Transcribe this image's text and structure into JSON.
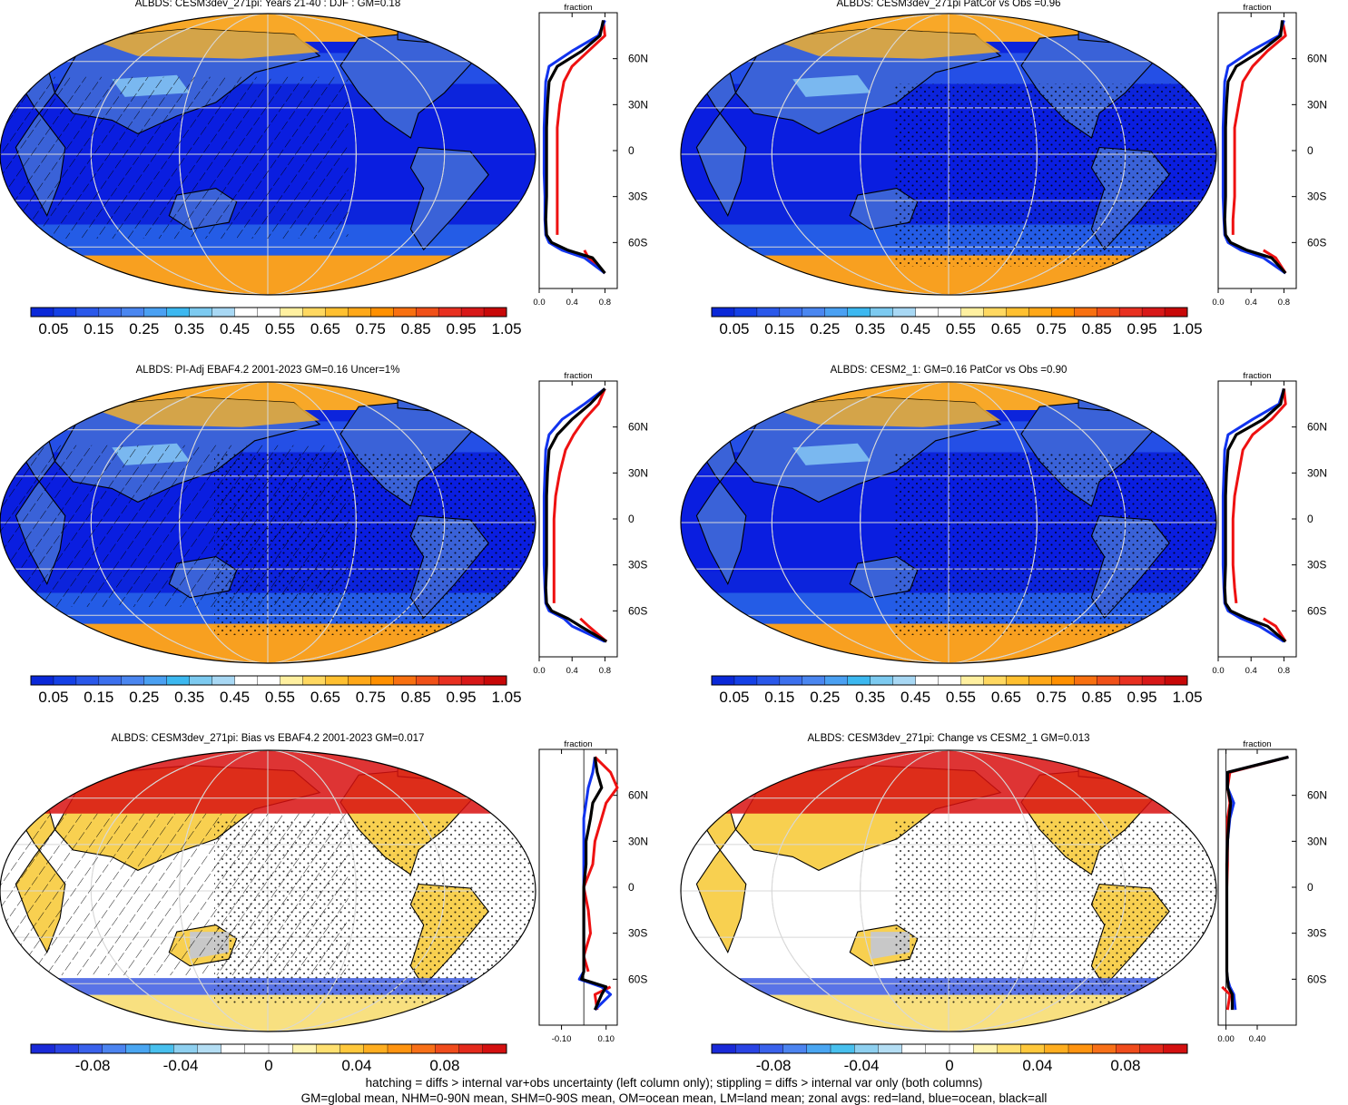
{
  "colors": {
    "seq": [
      "#0a28d8",
      "#1440e6",
      "#2a58ea",
      "#3c70ee",
      "#4a86f0",
      "#4aa0f2",
      "#3cb8f0",
      "#7ccaf0",
      "#a8d8f4",
      "#ffffff",
      "#ffffff",
      "#fff0a0",
      "#ffd860",
      "#ffc030",
      "#ffa818",
      "#ff9000",
      "#f87010",
      "#f05018",
      "#e83020",
      "#d81818",
      "#c80808"
    ],
    "div": [
      "#1a2ad8",
      "#2a44e4",
      "#3a62ec",
      "#4c84f0",
      "#4aa6f2",
      "#48c0ee",
      "#8ed0f0",
      "#b4def4",
      "#ffffff",
      "#ffffff",
      "#ffffff",
      "#fff4b0",
      "#ffe070",
      "#ffc83c",
      "#ffae20",
      "#ff9410",
      "#f87018",
      "#f04c1c",
      "#e42a1c",
      "#d41010"
    ],
    "land": "#9aa8d8",
    "zonal_land": "#ee1111",
    "zonal_ocean": "#1133ee",
    "zonal_all": "#000000"
  },
  "panels": [
    {
      "title": "ALBDS: CESM3dev_271pi: Years 21-40 : DJF : GM=0.18",
      "kind": "seq",
      "hatch": true,
      "stipple": false,
      "colorbar_labels": [
        "0.05",
        "0.15",
        "0.25",
        "0.35",
        "0.45",
        "0.55",
        "0.65",
        "0.75",
        "0.85",
        "0.95",
        "1.05"
      ],
      "zonal_label": "fraction",
      "zonal_ticks": [
        "0.0",
        "0.4",
        "0.8"
      ]
    },
    {
      "title": "ALBDS: CESM3dev_271pi PatCor vs Obs =0.96",
      "kind": "seq",
      "hatch": false,
      "stipple": true,
      "colorbar_labels": [
        "0.05",
        "0.15",
        "0.25",
        "0.35",
        "0.45",
        "0.55",
        "0.65",
        "0.75",
        "0.85",
        "0.95",
        "1.05"
      ],
      "zonal_label": "fraction",
      "zonal_ticks": [
        "0.0",
        "0.4",
        "0.8"
      ]
    },
    {
      "title": "ALBDS: PI-Adj EBAF4.2 2001-2023 GM=0.16 Uncer=1%",
      "kind": "seq",
      "hatch": true,
      "stipple": true,
      "colorbar_labels": [
        "0.05",
        "0.15",
        "0.25",
        "0.35",
        "0.45",
        "0.55",
        "0.65",
        "0.75",
        "0.85",
        "0.95",
        "1.05"
      ],
      "zonal_label": "fraction",
      "zonal_ticks": [
        "0.0",
        "0.4",
        "0.8"
      ]
    },
    {
      "title": "ALBDS: CESM2_1: GM=0.16 PatCor vs Obs =0.90",
      "kind": "seq",
      "hatch": false,
      "stipple": true,
      "colorbar_labels": [
        "0.05",
        "0.15",
        "0.25",
        "0.35",
        "0.45",
        "0.55",
        "0.65",
        "0.75",
        "0.85",
        "0.95",
        "1.05"
      ],
      "zonal_label": "fraction",
      "zonal_ticks": [
        "0.0",
        "0.4",
        "0.8"
      ]
    },
    {
      "title": "ALBDS: CESM3dev_271pi: Bias vs EBAF4.2 2001-2023 GM=0.017",
      "kind": "div",
      "hatch": true,
      "stipple": true,
      "colorbar_labels": [
        "-0.08",
        "-0.04",
        "0",
        "0.04",
        "0.08"
      ],
      "zonal_label": "fraction",
      "zonal_ticks": [
        "-0.10",
        "0.10"
      ]
    },
    {
      "title": "ALBDS: CESM3dev_271pi: Change vs CESM2_1 GM=0.013",
      "kind": "div",
      "hatch": false,
      "stipple": true,
      "colorbar_labels": [
        "-0.08",
        "-0.04",
        "0",
        "0.04",
        "0.08"
      ],
      "zonal_label": "fraction",
      "zonal_ticks": [
        "0.00",
        "0.40"
      ]
    }
  ],
  "lat_ticks": [
    "60N",
    "30N",
    "0",
    "30S",
    "60S"
  ],
  "chart_data": [
    {
      "type": "heatmap",
      "title": "ALBDS: CESM3dev_271pi: Years 21-40 : DJF : GM=0.18",
      "colorbar": {
        "ticks": [
          0.05,
          0.15,
          0.25,
          0.35,
          0.45,
          0.55,
          0.65,
          0.75,
          0.85,
          0.95,
          1.05
        ]
      },
      "zonal_mean": {
        "xlabel": "fraction",
        "xticks": [
          0.0,
          0.4,
          0.8
        ],
        "ylim": [
          -90,
          90
        ],
        "lat": [
          85,
          75,
          65,
          55,
          45,
          30,
          15,
          0,
          -15,
          -30,
          -45,
          -55,
          -60,
          -65,
          -70,
          -80
        ],
        "land": [
          0.78,
          0.8,
          0.6,
          0.4,
          0.3,
          0.25,
          0.22,
          0.22,
          0.22,
          0.22,
          0.22,
          0.22,
          null,
          0.55,
          0.6,
          0.8
        ],
        "ocean": [
          0.8,
          0.72,
          0.4,
          0.12,
          0.08,
          0.07,
          0.06,
          0.06,
          0.06,
          0.07,
          0.07,
          0.08,
          0.12,
          0.28,
          0.55,
          0.8
        ],
        "all": [
          0.78,
          0.74,
          0.52,
          0.22,
          0.12,
          0.1,
          0.09,
          0.09,
          0.09,
          0.09,
          0.08,
          0.09,
          0.15,
          0.35,
          0.65,
          0.8
        ]
      }
    },
    {
      "type": "heatmap",
      "title": "ALBDS: CESM3dev_271pi PatCor vs Obs =0.96",
      "colorbar": {
        "ticks": [
          0.05,
          0.15,
          0.25,
          0.35,
          0.45,
          0.55,
          0.65,
          0.75,
          0.85,
          0.95,
          1.05
        ]
      },
      "zonal_mean": {
        "xlabel": "fraction",
        "xticks": [
          0.0,
          0.4,
          0.8
        ],
        "ylim": [
          -90,
          90
        ],
        "lat": [
          85,
          75,
          65,
          55,
          45,
          30,
          15,
          0,
          -15,
          -30,
          -45,
          -55,
          -60,
          -65,
          -70,
          -80
        ],
        "land": [
          0.78,
          0.82,
          0.6,
          0.42,
          0.3,
          0.25,
          0.2,
          0.2,
          0.2,
          0.2,
          0.18,
          0.18,
          null,
          0.55,
          0.7,
          0.82
        ],
        "ocean": [
          0.8,
          0.74,
          0.4,
          0.12,
          0.08,
          0.07,
          0.06,
          0.06,
          0.06,
          0.06,
          0.07,
          0.08,
          0.12,
          0.28,
          0.55,
          0.82
        ],
        "all": [
          0.78,
          0.76,
          0.52,
          0.22,
          0.12,
          0.1,
          0.09,
          0.09,
          0.09,
          0.09,
          0.08,
          0.09,
          0.15,
          0.35,
          0.65,
          0.82
        ]
      }
    },
    {
      "type": "heatmap",
      "title": "ALBDS: PI-Adj EBAF4.2 2001-2023 GM=0.16 Uncer=1%",
      "colorbar": {
        "ticks": [
          0.05,
          0.15,
          0.25,
          0.35,
          0.45,
          0.55,
          0.65,
          0.75,
          0.85,
          0.95,
          1.05
        ]
      },
      "zonal_mean": {
        "xlabel": "fraction",
        "xticks": [
          0.0,
          0.4,
          0.8
        ],
        "ylim": [
          -90,
          90
        ],
        "lat": [
          85,
          75,
          65,
          55,
          45,
          30,
          15,
          0,
          -15,
          -30,
          -45,
          -55,
          -60,
          -65,
          -70,
          -80
        ],
        "land": [
          0.8,
          0.72,
          0.55,
          0.42,
          0.32,
          0.25,
          0.2,
          0.18,
          0.18,
          0.18,
          0.18,
          0.18,
          null,
          0.5,
          0.6,
          0.82
        ],
        "ocean": [
          0.8,
          0.55,
          0.28,
          0.12,
          0.08,
          0.07,
          0.06,
          0.06,
          0.06,
          0.06,
          0.07,
          0.08,
          0.12,
          0.3,
          0.4,
          0.8
        ],
        "all": [
          0.8,
          0.62,
          0.4,
          0.22,
          0.12,
          0.1,
          0.09,
          0.09,
          0.09,
          0.09,
          0.08,
          0.09,
          0.15,
          0.35,
          0.5,
          0.82
        ]
      }
    },
    {
      "type": "heatmap",
      "title": "ALBDS: CESM2_1: GM=0.16 PatCor vs Obs =0.90",
      "colorbar": {
        "ticks": [
          0.05,
          0.15,
          0.25,
          0.35,
          0.45,
          0.55,
          0.65,
          0.75,
          0.85,
          0.95,
          1.05
        ]
      },
      "zonal_mean": {
        "xlabel": "fraction",
        "xticks": [
          0.0,
          0.4,
          0.8
        ],
        "ylim": [
          -90,
          90
        ],
        "lat": [
          85,
          75,
          65,
          55,
          45,
          30,
          15,
          0,
          -15,
          -30,
          -45,
          -55,
          -60,
          -65,
          -70,
          -80
        ],
        "land": [
          0.8,
          0.82,
          0.65,
          0.42,
          0.3,
          0.25,
          0.2,
          0.18,
          0.18,
          0.18,
          0.2,
          0.22,
          null,
          0.55,
          0.7,
          0.82
        ],
        "ocean": [
          0.8,
          0.74,
          0.42,
          0.12,
          0.08,
          0.07,
          0.06,
          0.06,
          0.06,
          0.06,
          0.07,
          0.08,
          0.12,
          0.28,
          0.5,
          0.8
        ],
        "all": [
          0.8,
          0.76,
          0.55,
          0.22,
          0.12,
          0.1,
          0.09,
          0.09,
          0.09,
          0.09,
          0.08,
          0.09,
          0.15,
          0.35,
          0.6,
          0.82
        ]
      }
    },
    {
      "type": "heatmap",
      "title": "ALBDS: CESM3dev_271pi: Bias vs EBAF4.2 2001-2023 GM=0.017",
      "colorbar": {
        "ticks": [
          -0.08,
          -0.04,
          0,
          0.04,
          0.08
        ]
      },
      "zonal_mean": {
        "xlabel": "fraction",
        "xticks": [
          -0.1,
          0.1
        ],
        "ylim": [
          -90,
          90
        ],
        "lat": [
          85,
          75,
          65,
          55,
          45,
          30,
          15,
          0,
          -15,
          -30,
          -45,
          -55,
          -60,
          -65,
          -70,
          -80
        ],
        "land": [
          0.05,
          0.12,
          0.15,
          0.1,
          0.08,
          0.05,
          0.04,
          0.0,
          0.02,
          0.03,
          0.0,
          0.02,
          null,
          0.12,
          0.05,
          0.06
        ],
        "ocean": [
          0.05,
          0.04,
          0.02,
          0.01,
          0.0,
          0.0,
          0.0,
          0.0,
          0.0,
          0.0,
          0.0,
          0.0,
          -0.02,
          0.08,
          0.12,
          0.05
        ],
        "all": [
          0.05,
          0.06,
          0.08,
          0.04,
          0.03,
          0.01,
          0.01,
          0.0,
          0.0,
          0.0,
          0.0,
          0.0,
          -0.01,
          0.1,
          0.08,
          0.05
        ]
      }
    },
    {
      "type": "heatmap",
      "title": "ALBDS: CESM3dev_271pi: Change vs CESM2_1 GM=0.013",
      "colorbar": {
        "ticks": [
          -0.08,
          -0.04,
          0,
          0.04,
          0.08
        ]
      },
      "zonal_mean": {
        "xlabel": "fraction",
        "xticks": [
          0.0,
          0.4
        ],
        "ylim": [
          -90,
          90
        ],
        "lat": [
          85,
          75,
          65,
          55,
          45,
          30,
          15,
          0,
          -15,
          -30,
          -45,
          -55,
          -60,
          -65,
          -70,
          -80
        ],
        "land": [
          0.8,
          0.05,
          0.02,
          0.05,
          0.02,
          0.02,
          0.02,
          0.01,
          0.01,
          0.01,
          0.01,
          0.01,
          null,
          -0.05,
          0.05,
          0.02
        ],
        "ocean": [
          0.8,
          0.02,
          0.02,
          0.1,
          0.05,
          0.02,
          0.01,
          0.01,
          0.01,
          0.01,
          0.01,
          0.01,
          0.02,
          0.05,
          0.1,
          0.12
        ],
        "all": [
          0.8,
          0.02,
          0.02,
          0.06,
          0.04,
          0.02,
          0.01,
          0.01,
          0.01,
          0.01,
          0.01,
          0.01,
          0.02,
          0.03,
          0.08,
          0.08
        ]
      }
    }
  ],
  "footer": {
    "line1": "hatching = diffs > internal var+obs uncertainty (left column only); stippling = diffs > internal var only (both columns)",
    "line2": "GM=global mean, NHM=0-90N mean, SHM=0-90S mean, OM=ocean mean, LM=land mean; zonal avgs: red=land, blue=ocean, black=all"
  }
}
